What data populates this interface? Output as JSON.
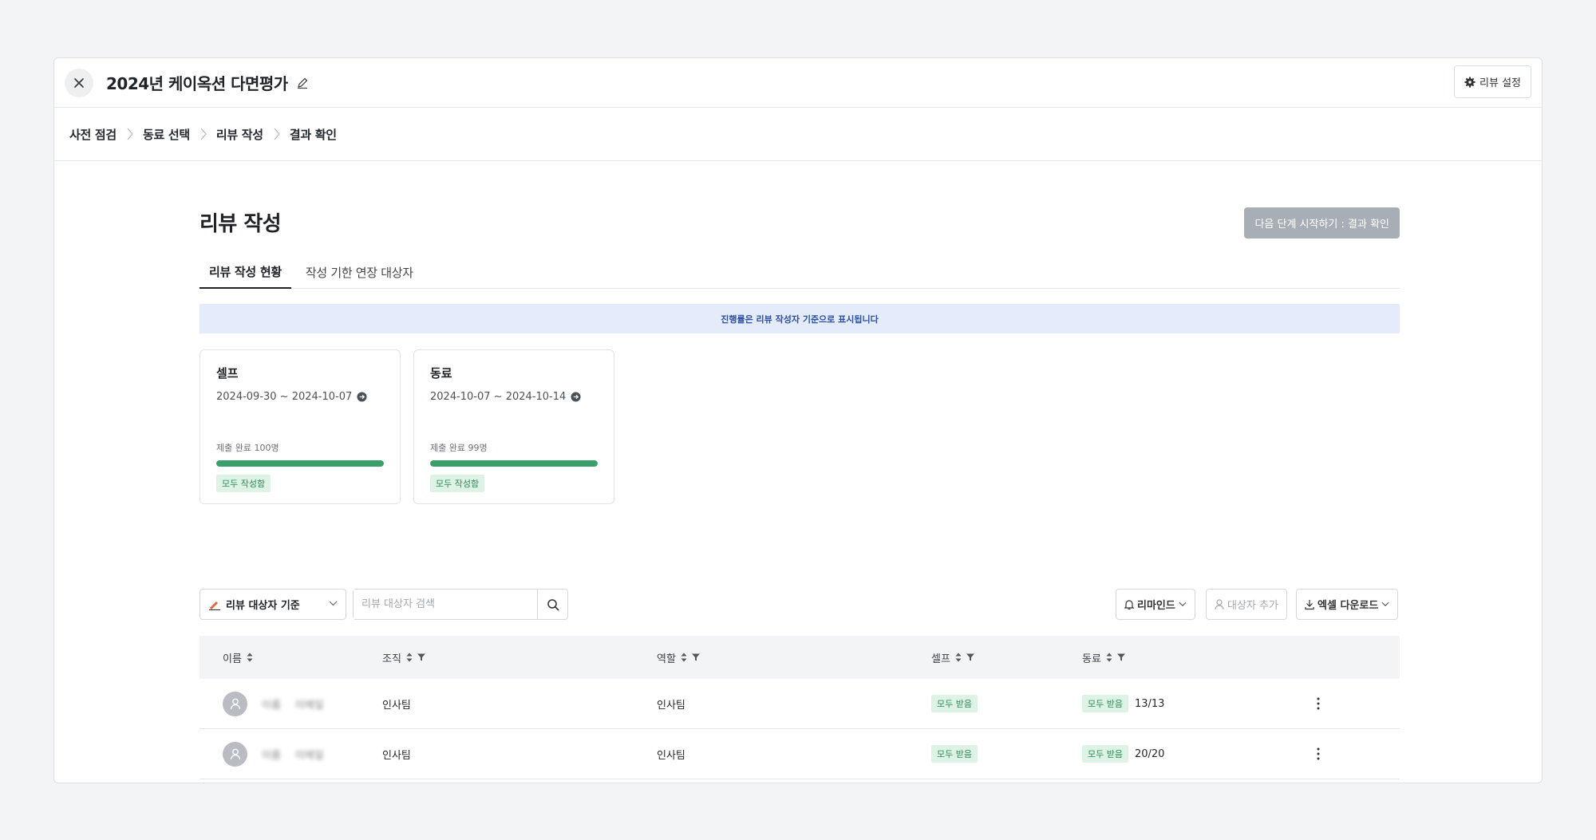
{
  "header": {
    "title": "2024년 케이옥션 다면평가",
    "settings_label": "리뷰 설정"
  },
  "stepper": {
    "steps": [
      "사전 점검",
      "동료 선택",
      "리뷰 작성",
      "결과 확인"
    ]
  },
  "main": {
    "page_title": "리뷰 작성",
    "next_button": "다음 단계 시작하기 : 결과 확인",
    "tabs": [
      "리뷰 작성 현황",
      "작성 기한 연장 대상자"
    ],
    "active_tab": "리뷰 작성 현황",
    "banner": "진행률은 리뷰 작성자 기준으로 표시됩니다"
  },
  "cards": [
    {
      "title": "셀프",
      "period": "2024-09-30 ~ 2024-10-07",
      "status": "제출 완료 100명",
      "progress": 1.0,
      "badge": "모두 작성함"
    },
    {
      "title": "동료",
      "period": "2024-10-07 ~ 2024-10-14",
      "status": "제출 완료 99명",
      "progress": 1.0,
      "badge": "모두 작성함"
    }
  ],
  "toolbar": {
    "filter_select": "리뷰 대상자 기준",
    "search_placeholder": "리뷰 대상자 검색",
    "remind": "리마인드",
    "add_target": "대상자 추가",
    "excel": "엑셀 다운로드"
  },
  "table": {
    "columns": [
      "이름",
      "조직",
      "역할",
      "셀프",
      "동료"
    ],
    "rows": [
      {
        "name": "이름",
        "sub": "이메일",
        "org": "인사팀",
        "role": "인사팀",
        "self": "모두 받음",
        "peer": "모두 받음",
        "peer_count": "13/13"
      },
      {
        "name": "이름",
        "sub": "이메일",
        "org": "인사팀",
        "role": "인사팀",
        "self": "모두 받음",
        "peer": "모두 받음",
        "peer_count": "20/20"
      }
    ]
  },
  "colors": {
    "accent_green": "#3a9f6b",
    "badge_bg": "#def3e6",
    "banner_bg": "#e4ecfb",
    "disabled_btn": "#a8aeb6"
  }
}
